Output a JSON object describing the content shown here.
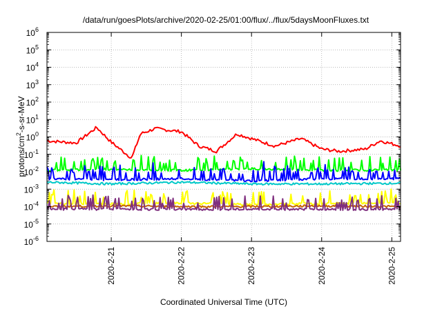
{
  "chart_data": {
    "type": "line",
    "title": "/data/run/goesPlots/archive/2020-02-25/01:00/flux/../flux/5daysMoonFluxes.txt",
    "xlabel": "Coordinated Universal Time (UTC)",
    "ylabel_parts": {
      "main": "protons/cm",
      "sup": "2",
      "rest": "-s-sr-MeV"
    },
    "x_range": [
      "2020-02-20T02:00",
      "2020-02-25T03:00"
    ],
    "x_ticks": [
      "2020-2-21",
      "2020-2-22",
      "2020-2-23",
      "2020-2-24",
      "2020-2-25"
    ],
    "y_scale": "log",
    "y_range": [
      1e-06,
      1000000.0
    ],
    "y_tick_exponents": [
      -6,
      -5,
      -4,
      -3,
      -2,
      -1,
      0,
      1,
      2,
      3,
      4,
      5,
      6
    ],
    "y_tick_base": "10",
    "grid": true,
    "series": [
      {
        "color": "#ff0000",
        "typical": 0.5,
        "x": [
          "2020-02-20T02:00",
          "2020-02-20T12:00",
          "2020-02-20T19:00",
          "2020-02-21T00:00",
          "2020-02-21T07:00",
          "2020-02-21T10:00",
          "2020-02-21T15:00",
          "2020-02-22T00:00",
          "2020-02-22T06:00",
          "2020-02-22T12:00",
          "2020-02-22T19:00",
          "2020-02-23T00:00",
          "2020-02-23T08:00",
          "2020-02-23T17:00",
          "2020-02-24T00:00",
          "2020-02-24T06:00",
          "2020-02-24T15:00",
          "2020-02-24T20:00",
          "2020-02-25T03:00"
        ],
        "y": [
          0.6,
          0.45,
          3.5,
          0.5,
          0.06,
          1.5,
          3.0,
          2.0,
          0.3,
          0.15,
          1.5,
          0.8,
          0.3,
          0.8,
          0.2,
          0.15,
          0.2,
          0.6,
          0.3
        ]
      },
      {
        "color": "#00ff00",
        "typical": 0.012,
        "x": [
          "2020-02-20T02:00",
          "2020-02-21T00:00",
          "2020-02-22T00:00",
          "2020-02-23T00:00",
          "2020-02-24T00:00",
          "2020-02-25T03:00"
        ],
        "y": [
          0.012,
          0.014,
          0.012,
          0.015,
          0.012,
          0.013
        ]
      },
      {
        "color": "#0000ff",
        "typical": 0.004,
        "x": [
          "2020-02-20T02:00",
          "2020-02-21T00:00",
          "2020-02-22T00:00",
          "2020-02-23T00:00",
          "2020-02-24T00:00",
          "2020-02-25T03:00"
        ],
        "y": [
          0.004,
          0.0035,
          0.004,
          0.003,
          0.004,
          0.004
        ]
      },
      {
        "color": "#00c8c8",
        "typical": 0.0025,
        "x": [
          "2020-02-20T02:00",
          "2020-02-21T00:00",
          "2020-02-22T00:00",
          "2020-02-23T00:00",
          "2020-02-24T00:00",
          "2020-02-25T03:00"
        ],
        "y": [
          0.0025,
          0.002,
          0.0025,
          0.002,
          0.002,
          0.0022
        ]
      },
      {
        "color": "#ffff00",
        "typical": 0.00015,
        "x": [
          "2020-02-20T02:00",
          "2020-02-21T00:00",
          "2020-02-22T00:00",
          "2020-02-23T00:00",
          "2020-02-24T00:00",
          "2020-02-25T03:00"
        ],
        "y": [
          0.00015,
          0.00014,
          0.00016,
          0.00013,
          0.00015,
          0.00016
        ]
      },
      {
        "color": "#c86400",
        "typical": 0.0001,
        "x": [
          "2020-02-20T02:00",
          "2020-02-21T00:00",
          "2020-02-22T00:00",
          "2020-02-23T00:00",
          "2020-02-24T00:00",
          "2020-02-25T03:00"
        ],
        "y": [
          0.0001,
          0.00011,
          0.0001,
          0.0001,
          0.00011,
          0.0001
        ]
      },
      {
        "color": "#7f2f7f",
        "typical": 7e-05,
        "x": [
          "2020-02-20T02:00",
          "2020-02-21T00:00",
          "2020-02-22T00:00",
          "2020-02-23T00:00",
          "2020-02-24T00:00",
          "2020-02-25T03:00"
        ],
        "y": [
          7e-05,
          7e-05,
          7e-05,
          7e-05,
          7e-05,
          7e-05
        ]
      }
    ]
  }
}
